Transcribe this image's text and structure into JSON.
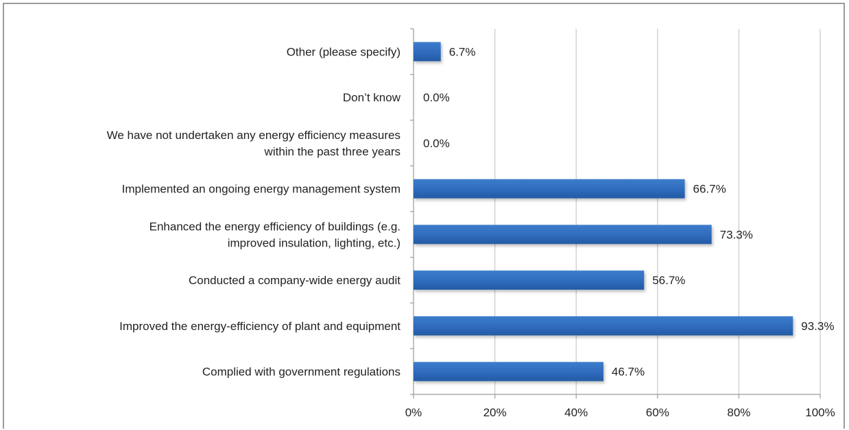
{
  "chart_data": {
    "type": "bar",
    "orientation": "horizontal",
    "categories": [
      [
        "Complied with government regulations"
      ],
      [
        "Improved the energy-efficiency of plant and equipment"
      ],
      [
        "Conducted a company-wide energy audit"
      ],
      [
        "Enhanced the energy efficiency of buildings (e.g.",
        "improved insulation, lighting, etc.)"
      ],
      [
        "Implemented an ongoing energy management system"
      ],
      [
        "We have not undertaken any energy efficiency measures",
        "within the past three years"
      ],
      [
        "Don’t know"
      ],
      [
        "Other (please specify)"
      ]
    ],
    "values": [
      46.7,
      93.3,
      56.7,
      73.3,
      66.7,
      0.0,
      0.0,
      6.7
    ],
    "data_labels": [
      "46.7%",
      "93.3%",
      "56.7%",
      "73.3%",
      "66.7%",
      "0.0%",
      "0.0%",
      "6.7%"
    ],
    "xlim": [
      0,
      100
    ],
    "xticks": [
      0,
      20,
      40,
      60,
      80,
      100
    ],
    "xtick_labels": [
      "0%",
      "20%",
      "40%",
      "60%",
      "80%",
      "100%"
    ],
    "title": "",
    "xlabel": "",
    "ylabel": "",
    "grid": "vertical",
    "legend": "none",
    "colors": {
      "bar": "#2f6bbd",
      "bar_dark": "#1f4f92",
      "grid": "#c8c8c8",
      "axis": "#9a9a9a",
      "text": "#222222"
    }
  }
}
